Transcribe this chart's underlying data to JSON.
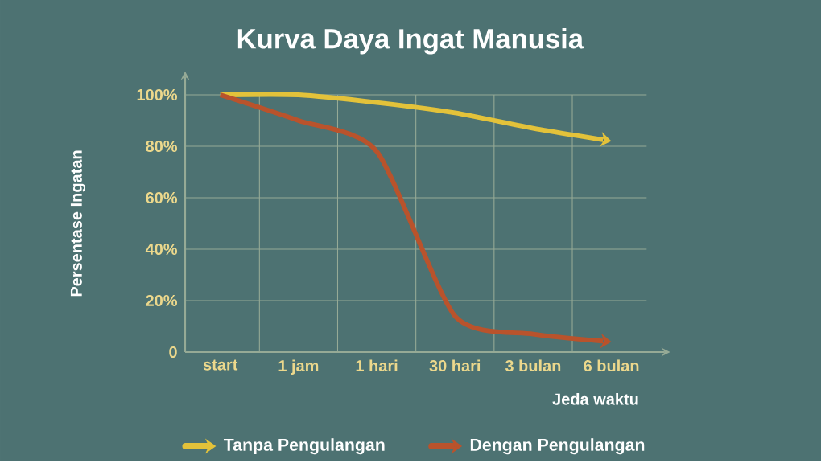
{
  "chart_data": {
    "type": "line",
    "title": "Kurva Daya Ingat Manusia",
    "xlabel": "Jeda waktu",
    "ylabel": "Persentase Ingatan",
    "categories": [
      "start",
      "1 jam",
      "1 hari",
      "30 hari",
      "3 bulan",
      "6 bulan"
    ],
    "series": [
      {
        "name": "Tanpa Pengulangan",
        "color": "#e3c23a",
        "values": [
          100,
          100,
          97,
          93,
          87,
          82
        ]
      },
      {
        "name": "Dengan Pengulangan",
        "color": "#b9532c",
        "values": [
          100,
          90,
          78,
          14,
          7,
          4
        ]
      }
    ],
    "ylim": [
      0,
      100
    ],
    "yticks": [
      0,
      {
        "value": 20,
        "label": "20%"
      },
      {
        "value": 40,
        "label": "40%"
      },
      {
        "value": 60,
        "label": "60%"
      },
      {
        "value": 80,
        "label": "80%"
      },
      {
        "value": 100,
        "label": "100%"
      }
    ],
    "grid": true,
    "legend": "bottom"
  }
}
